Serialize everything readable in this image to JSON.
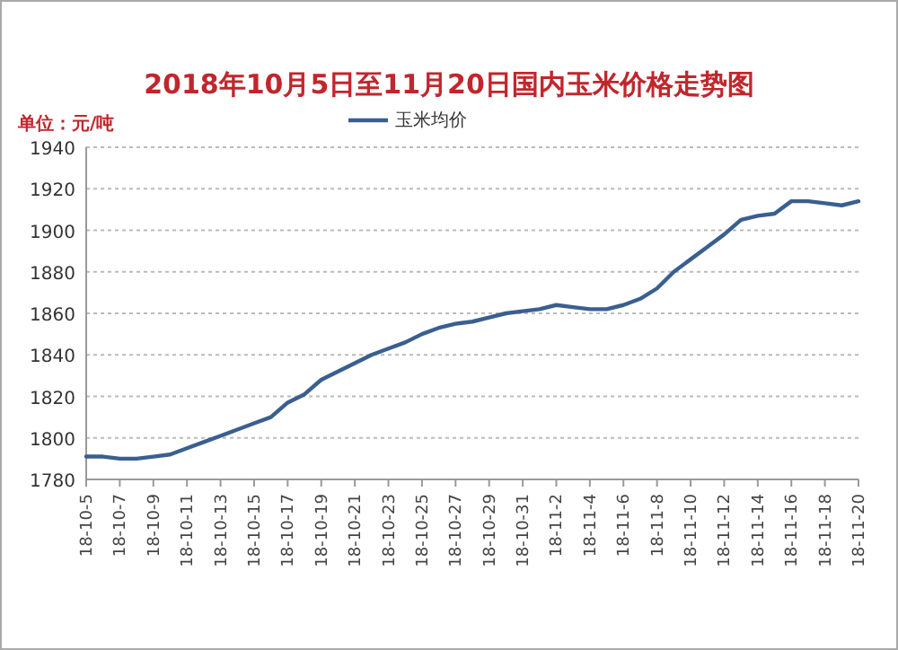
{
  "chart_data": {
    "type": "line",
    "title": "2018年10月5日至11月20日国内玉米价格走势图",
    "ylabel": "单位：元/吨",
    "categories": [
      "18-10-5",
      null,
      "18-10-7",
      null,
      "18-10-9",
      null,
      "18-10-11",
      null,
      "18-10-13",
      null,
      "18-10-15",
      null,
      "18-10-17",
      null,
      "18-10-19",
      null,
      "18-10-21",
      null,
      "18-10-23",
      null,
      "18-10-25",
      null,
      "18-10-27",
      null,
      "18-10-29",
      null,
      "18-10-31",
      null,
      "18-11-2",
      null,
      "18-11-4",
      null,
      "18-11-6",
      null,
      "18-11-8",
      null,
      "18-11-10",
      null,
      "18-11-12",
      null,
      "18-11-14",
      null,
      "18-11-16",
      null,
      "18-11-18",
      null,
      "18-11-20"
    ],
    "series": [
      {
        "name": "玉米均价",
        "color": "#3a5f8f",
        "values": [
          1791,
          1791,
          1790,
          1790,
          1791,
          1792,
          1795,
          1798,
          1801,
          1804,
          1807,
          1810,
          1817,
          1821,
          1828,
          1832,
          1836,
          1840,
          1843,
          1846,
          1850,
          1853,
          1855,
          1856,
          1858,
          1860,
          1861,
          1862,
          1864,
          1863,
          1862,
          1862,
          1864,
          1867,
          1872,
          1880,
          1886,
          1892,
          1898,
          1905,
          1907,
          1908,
          1914,
          1914,
          1913,
          1912,
          1914
        ]
      }
    ],
    "ylim": [
      1780,
      1940
    ],
    "yticks": [
      1780,
      1800,
      1820,
      1840,
      1860,
      1880,
      1900,
      1920,
      1940
    ],
    "grid": "y",
    "legend": "top",
    "marker": "none",
    "line_style": "solid"
  }
}
